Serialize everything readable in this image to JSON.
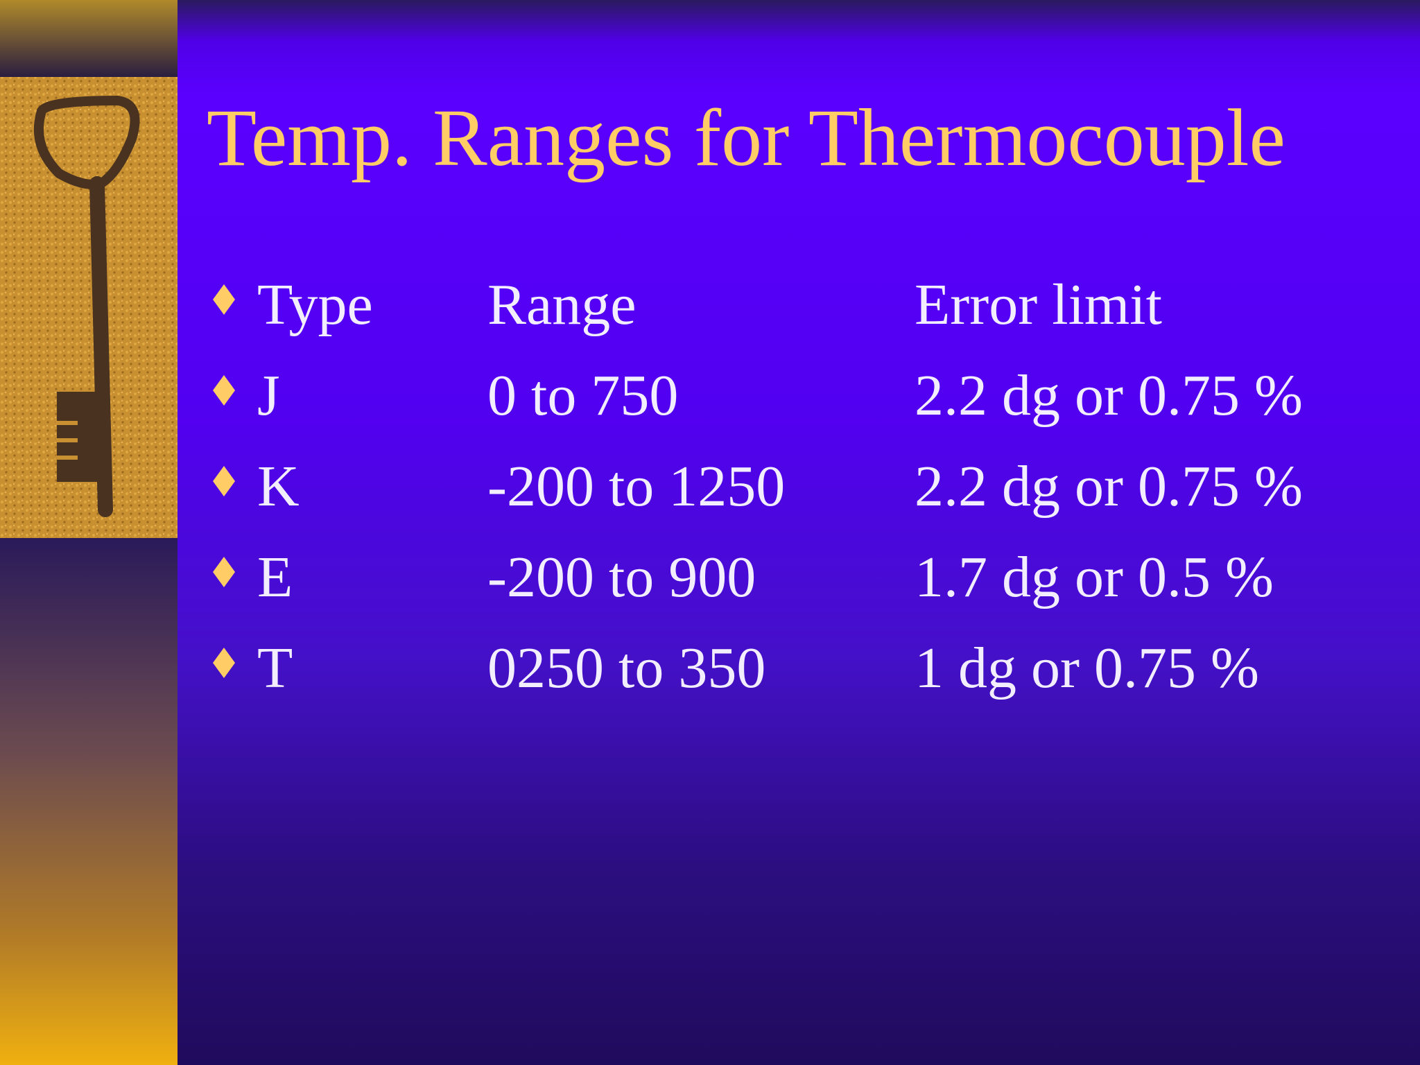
{
  "slide": {
    "title": "Temp. Ranges for Thermocouple",
    "rows": [
      [
        "Type",
        "Range",
        "Error limit"
      ],
      [
        "J",
        "0 to 750",
        "2.2 dg or 0.75 %"
      ],
      [
        "K",
        "-200 to 1250",
        "2.2 dg or 0.75 %"
      ],
      [
        "E",
        "-200 to 900",
        "1.7 dg or 0.5 %"
      ],
      [
        "T",
        "0250 to 350",
        "1 dg or 0.75 %"
      ]
    ]
  }
}
